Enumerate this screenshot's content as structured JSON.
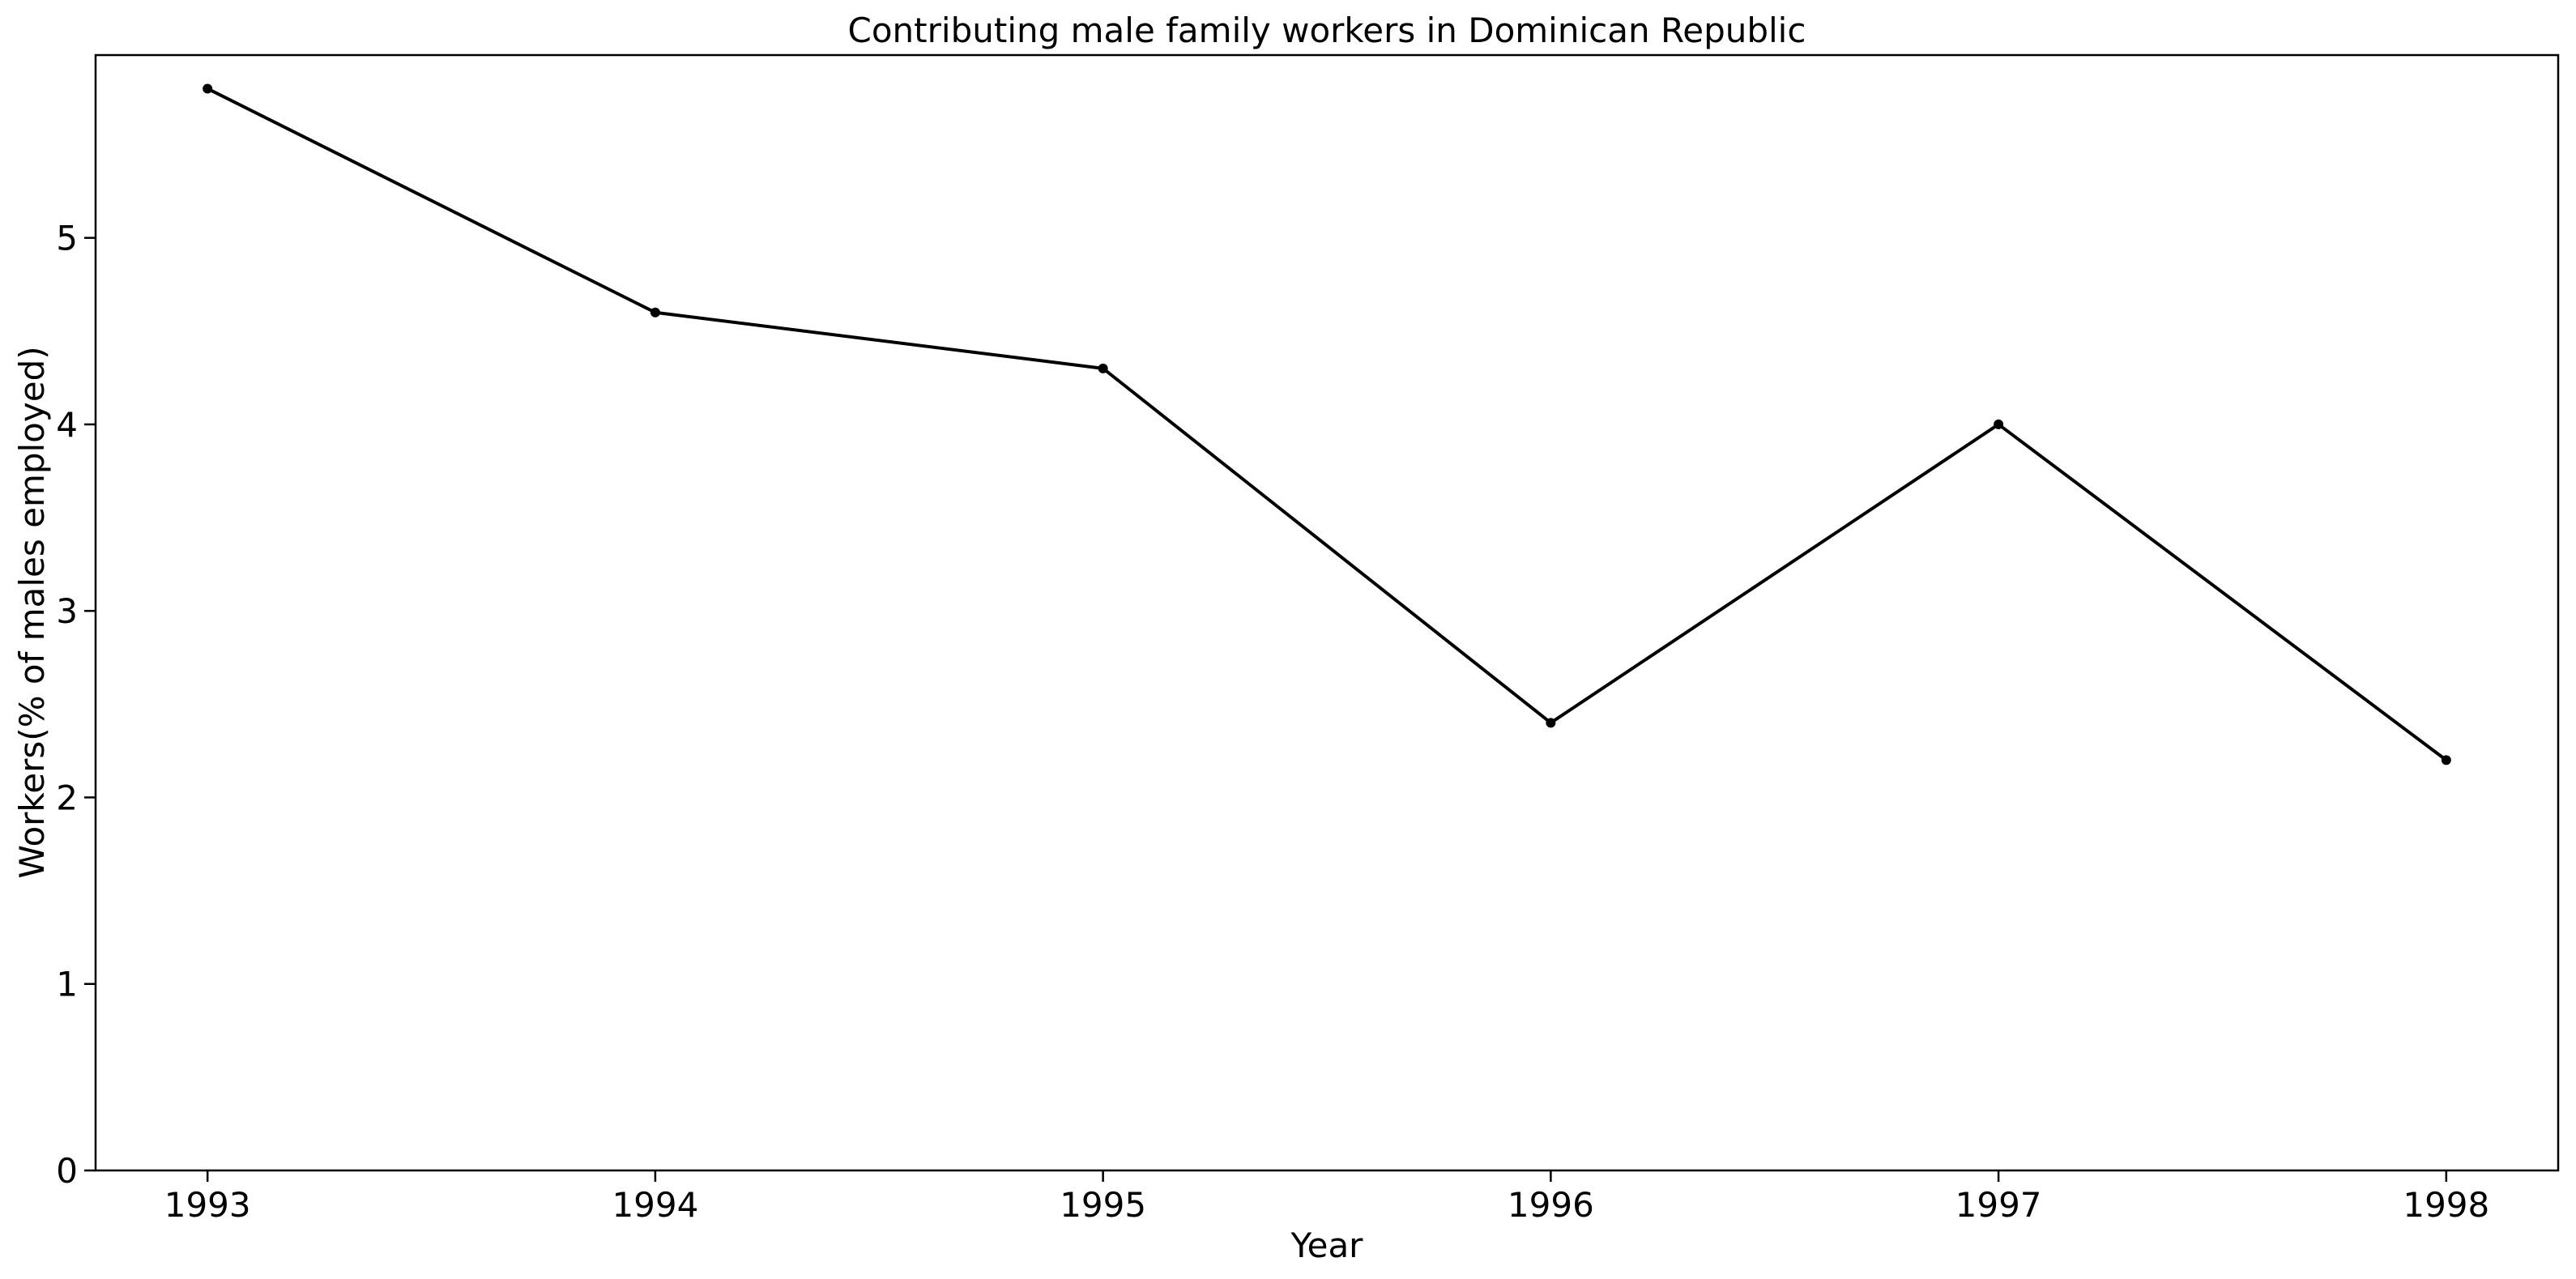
{
  "chart_data": {
    "type": "line",
    "title": "Contributing male family workers in Dominican Republic",
    "xlabel": "Year",
    "ylabel": "Workers(% of males employed)",
    "x": [
      "1993",
      "1994",
      "1995",
      "1996",
      "1997",
      "1998"
    ],
    "series": [
      {
        "values": [
          5.8,
          4.6,
          4.3,
          2.4,
          4.0,
          2.2
        ],
        "color": "#000000",
        "marker": "dot"
      }
    ],
    "xlim": [
      1992.75,
      1998.25
    ],
    "ylim": [
      0,
      5.98
    ],
    "yticks": [
      0,
      1,
      2,
      3,
      4,
      5
    ],
    "grid": false,
    "legend": "none"
  }
}
